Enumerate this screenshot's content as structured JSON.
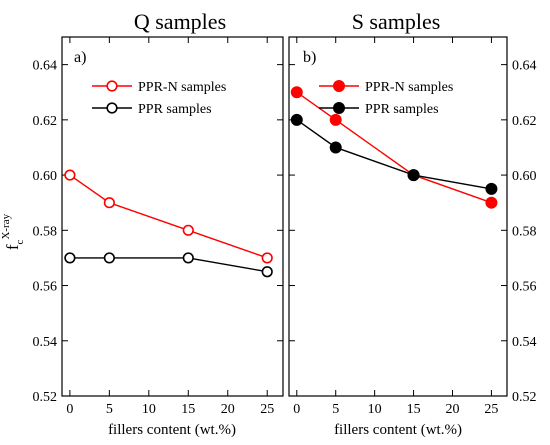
{
  "chart_data": [
    {
      "type": "line",
      "title": "Q samples",
      "panel_label": "a)",
      "xlabel": "fillers content (wt.%)",
      "ylabel": "f_c^X-ray",
      "ylabel_main": "f",
      "ylabel_sub": "c",
      "ylabel_sup": "X-ray",
      "xlim": [
        -1,
        27
      ],
      "ylim": [
        0.52,
        0.65
      ],
      "xticks": [
        0,
        5,
        10,
        15,
        20,
        25
      ],
      "xtick_labels": [
        "0",
        "5",
        "10",
        "15",
        "20",
        "25"
      ],
      "yticks": [
        0.52,
        0.54,
        0.56,
        0.58,
        0.6,
        0.62,
        0.64
      ],
      "ytick_labels": [
        "0.52",
        "0.54",
        "0.56",
        "0.58",
        "0.60",
        "0.62",
        "0.64"
      ],
      "yaxis_side": "left",
      "legend_position": "top-right",
      "marker_fill": "hollow",
      "series": [
        {
          "name": "PPR-N samples",
          "color": "#ff0000",
          "x": [
            0,
            5,
            15,
            25
          ],
          "y": [
            0.6,
            0.59,
            0.58,
            0.57
          ]
        },
        {
          "name": "PPR samples",
          "color": "#000000",
          "x": [
            0,
            5,
            15,
            25
          ],
          "y": [
            0.57,
            0.57,
            0.57,
            0.565
          ]
        }
      ]
    },
    {
      "type": "line",
      "title": "S samples",
      "panel_label": "b)",
      "xlabel": "fillers content (wt.%)",
      "ylabel": "",
      "xlim": [
        -1,
        27
      ],
      "ylim": [
        0.52,
        0.65
      ],
      "xticks": [
        0,
        5,
        10,
        15,
        20,
        25
      ],
      "xtick_labels": [
        "0",
        "5",
        "10",
        "15",
        "20",
        "25"
      ],
      "yticks": [
        0.52,
        0.54,
        0.56,
        0.58,
        0.6,
        0.62,
        0.64
      ],
      "ytick_labels": [
        "0.52",
        "0.54",
        "0.56",
        "0.58",
        "0.60",
        "0.62",
        "0.64"
      ],
      "yaxis_side": "right",
      "legend_position": "top-right",
      "marker_fill": "filled",
      "series": [
        {
          "name": "PPR-N samples",
          "color": "#ff0000",
          "x": [
            0,
            5,
            15,
            25
          ],
          "y": [
            0.63,
            0.62,
            0.6,
            0.59
          ]
        },
        {
          "name": "PPR samples",
          "color": "#000000",
          "x": [
            0,
            5,
            15,
            25
          ],
          "y": [
            0.62,
            0.61,
            0.6,
            0.595
          ]
        }
      ]
    }
  ]
}
